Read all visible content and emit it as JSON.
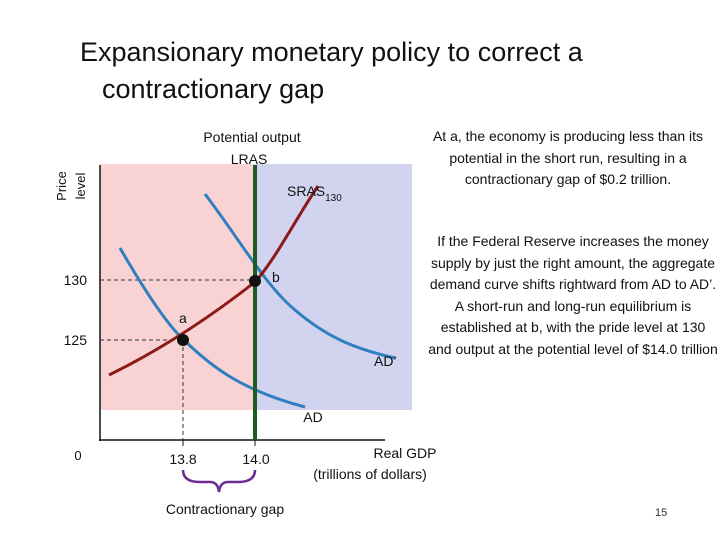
{
  "slide": {
    "title_line1": "Expansionary monetary policy to correct a",
    "title_line2": "contractionary gap",
    "page_number": "15"
  },
  "notes": {
    "first": "At a, the economy is producing less than its potential in the short run, resulting in a contractionary gap of $0.2 trillion.",
    "second": "If the Federal Reserve increases the money supply by just the right amount, the aggregate demand curve shifts rightward from AD to AD’. A short-run and long-run equilibrium is established at b, with the pride level at 130 and output at the potential level of $14.0 trillion"
  },
  "diagram": {
    "y_axis_label_1": "Price",
    "y_axis_label_2": "level",
    "x_axis_label_1": "Real GDP",
    "x_axis_label_2": "(trillions of dollars)",
    "origin_label": "0",
    "y_ticks": [
      "130",
      "125"
    ],
    "x_ticks": [
      "13.8",
      "14.0"
    ],
    "lras_label_1": "Potential output",
    "lras_label_2": "LRAS",
    "sras_label": "SRAS",
    "sras_subscript": "130",
    "ad_label": "AD",
    "ad_prime_label": "AD’",
    "point_a_label": "a",
    "point_b_label": "b",
    "gap_label": "Contractionary gap",
    "colors": {
      "gap_region": "#f9d3d3",
      "right_region": "#d2d3ef",
      "lras": "#1f5a1f",
      "sras": "#8b1a1a",
      "ad": "#2f7fc1",
      "bracket": "#6a2c91",
      "point": "#111111"
    }
  }
}
